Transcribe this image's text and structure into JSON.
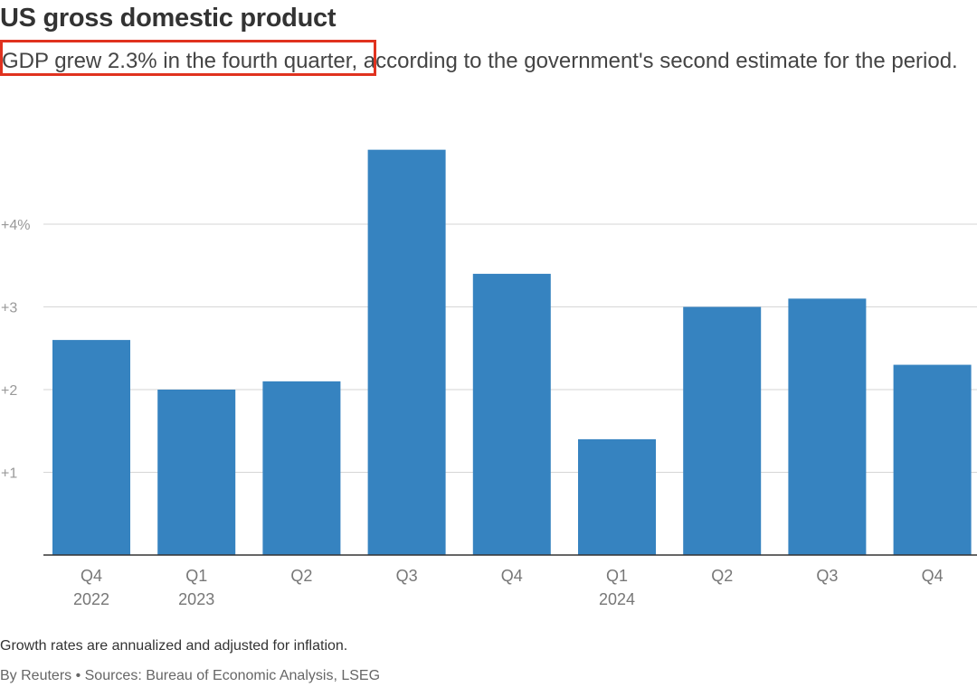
{
  "title": "US gross domestic product",
  "subtitle": "GDP grew 2.3% in the fourth quarter, according to the government's second estimate for the period.",
  "highlight_color": "#e0321f",
  "chart_data": {
    "type": "bar",
    "categories": [
      "Q4|2022",
      "Q1|2023",
      "Q2",
      "Q3",
      "Q4",
      "Q1|2024",
      "Q2",
      "Q3",
      "Q4"
    ],
    "values": [
      2.6,
      2.0,
      2.1,
      4.9,
      3.4,
      1.4,
      3.0,
      3.1,
      2.3
    ],
    "yticks": [
      {
        "v": 1,
        "label": "+1"
      },
      {
        "v": 2,
        "label": "+2"
      },
      {
        "v": 3,
        "label": "+3"
      },
      {
        "v": 4,
        "label": "+4%"
      }
    ],
    "ylim": [
      0,
      5.1
    ],
    "ylabel": "",
    "xlabel": "",
    "grid": true,
    "bar_color": "#3683c0"
  },
  "footer": {
    "note": "Growth rates are annualized and adjusted for inflation.",
    "source": "By Reuters • Sources: Bureau of Economic Analysis, LSEG"
  }
}
